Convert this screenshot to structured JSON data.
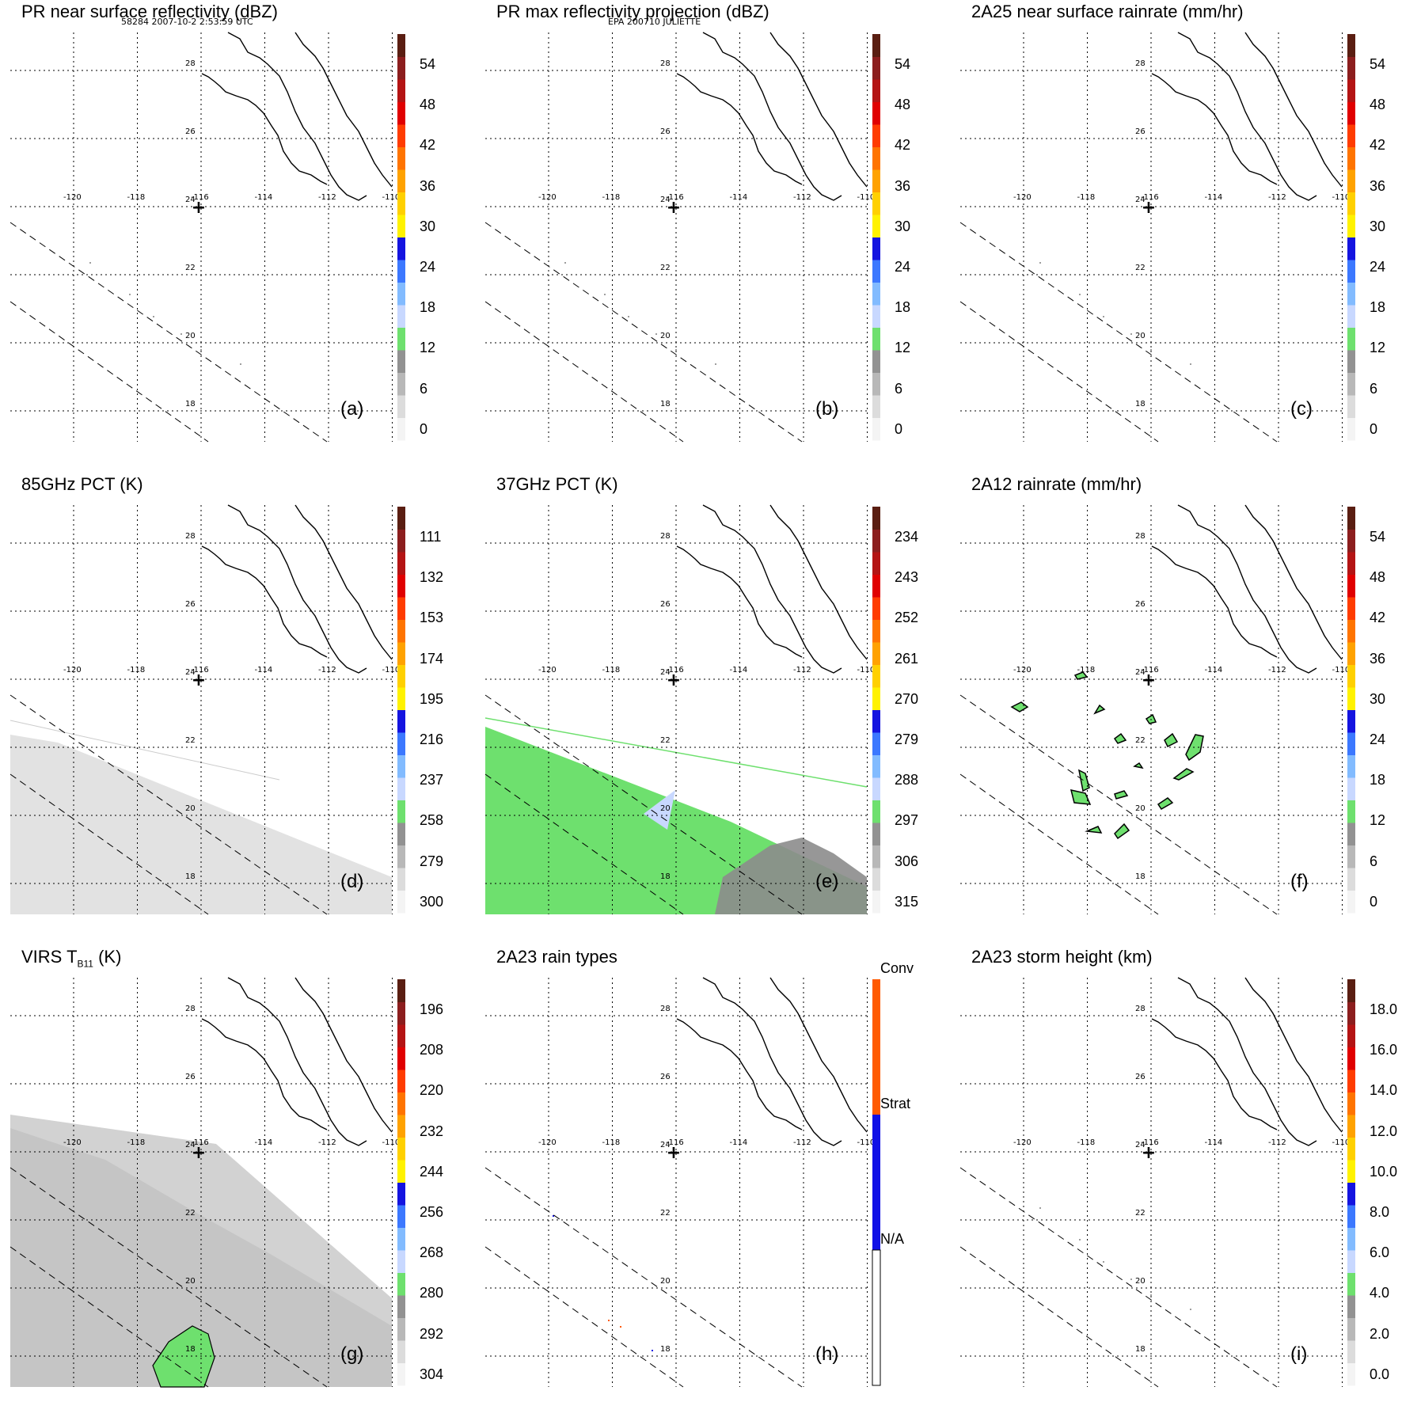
{
  "header": {
    "left": "58284 2007-10-2 2:53:59 UTC",
    "center": "EPA 200710 JULIETTE"
  },
  "map_axes": {
    "lat_labels": [
      "28",
      "26",
      "24",
      "22",
      "20",
      "18"
    ],
    "lon_labels": [
      "-120",
      "-118",
      "-116",
      "-114",
      "-112",
      "-110"
    ],
    "center_marker": "+",
    "grid_line_color": "#000000"
  },
  "panels": [
    {
      "id": "a",
      "title": "PR near surface reflectivity (dBZ)",
      "letter": "(a)",
      "ticks": [
        "54",
        "48",
        "42",
        "36",
        "30",
        "24",
        "18",
        "12",
        "6",
        "0"
      ],
      "field": "sparse-reflectivity"
    },
    {
      "id": "b",
      "title": "PR max reflectivity projection (dBZ)",
      "letter": "(b)",
      "ticks": [
        "54",
        "48",
        "42",
        "36",
        "30",
        "24",
        "18",
        "12",
        "6",
        "0"
      ],
      "field": "sparse-reflectivity"
    },
    {
      "id": "c",
      "title": "2A25 near surface rainrate (mm/hr)",
      "letter": "(c)",
      "ticks": [
        "54",
        "48",
        "42",
        "36",
        "30",
        "24",
        "18",
        "12",
        "6",
        "0"
      ],
      "field": "sparse-rain"
    },
    {
      "id": "d",
      "title": "85GHz PCT (K)",
      "letter": "(d)",
      "ticks": [
        "111",
        "132",
        "153",
        "174",
        "195",
        "216",
        "237",
        "258",
        "279",
        "300"
      ],
      "field": "pct85-swath"
    },
    {
      "id": "e",
      "title": "37GHz PCT (K)",
      "letter": "(e)",
      "ticks": [
        "234",
        "243",
        "252",
        "261",
        "270",
        "279",
        "288",
        "297",
        "306",
        "315"
      ],
      "field": "pct37-swath"
    },
    {
      "id": "f",
      "title": "2A12 rainrate (mm/hr)",
      "letter": "(f)",
      "ticks": [
        "54",
        "48",
        "42",
        "36",
        "30",
        "24",
        "18",
        "12",
        "6",
        "0"
      ],
      "field": "rain-cells"
    },
    {
      "id": "g",
      "title": "VIRS T",
      "title_sub": "B11",
      "title_after": " (K)",
      "letter": "(g)",
      "ticks": [
        "196",
        "208",
        "220",
        "232",
        "244",
        "256",
        "268",
        "280",
        "292",
        "304"
      ],
      "field": "virs-swath"
    },
    {
      "id": "h",
      "title": "2A23 rain types",
      "letter": "(h)",
      "ticks": [
        "Conv",
        "Strat",
        "N/A"
      ],
      "field": "rain-types"
    },
    {
      "id": "i",
      "title": "2A23 storm height (km)",
      "letter": "(i)",
      "ticks": [
        "18.0",
        "16.0",
        "14.0",
        "12.0",
        "10.0",
        "8.0",
        "6.0",
        "4.0",
        "2.0",
        "0.0"
      ],
      "field": "storm-height"
    }
  ],
  "colors": {
    "scale": [
      "#f4f4f4",
      "#dcdcdc",
      "#b8b8b8",
      "#929292",
      "#6ee06e",
      "#c8d8ff",
      "#82bbff",
      "#3c78ff",
      "#1414e0",
      "#fff200",
      "#ffd000",
      "#ffa200",
      "#ff7400",
      "#ff3c00",
      "#e00000",
      "#b41414",
      "#8c1e1e",
      "#5a1e12"
    ],
    "rain_green": "#6ee06e",
    "swath_gray": "#dedede",
    "conv": "#ff5a00",
    "strat": "#1010e6"
  }
}
